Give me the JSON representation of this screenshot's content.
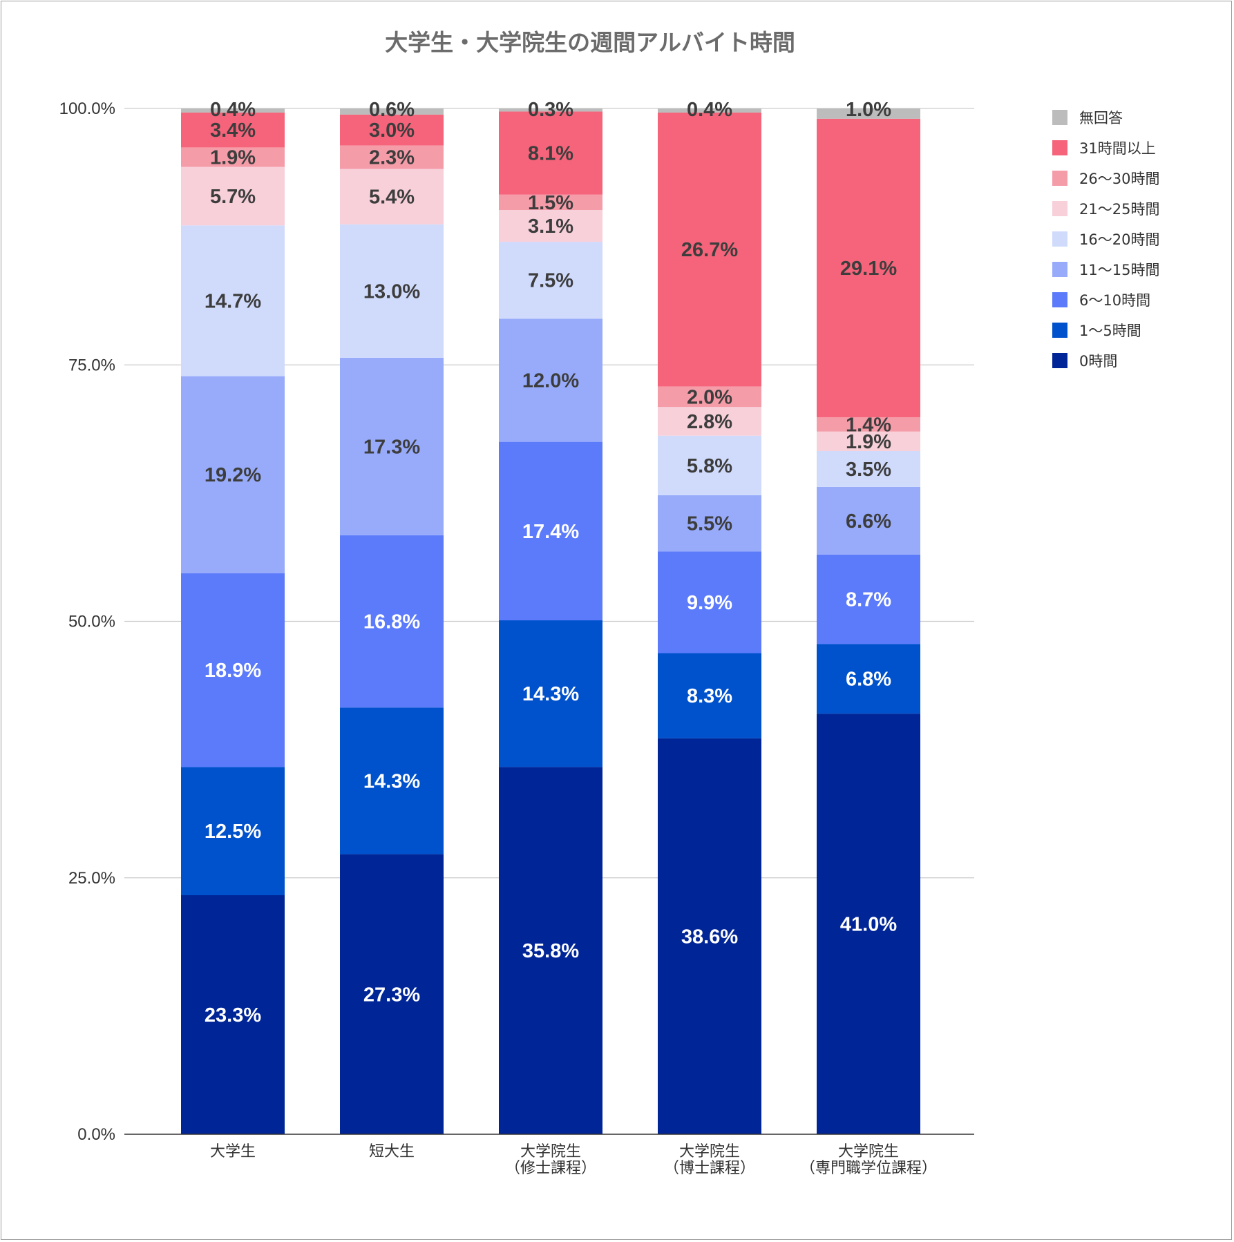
{
  "chart_data": {
    "type": "bar",
    "stacked": true,
    "title": "大学生・大学院生の週間アルバイト時間",
    "categories": [
      [
        "大学生"
      ],
      [
        "短大生"
      ],
      [
        "大学院生",
        "（修士課程）"
      ],
      [
        "大学院生",
        "（博士課程）"
      ],
      [
        "大学院生",
        "（専門職学位課程）"
      ]
    ],
    "ylim": [
      0,
      100
    ],
    "yticks": [
      "0.0%",
      "25.0%",
      "50.0%",
      "75.0%",
      "100.0%"
    ],
    "legend_position": "right",
    "series": [
      {
        "name": "0時間",
        "color": "#002596",
        "label_color": "#ffffff",
        "values": [
          23.3,
          27.3,
          35.8,
          38.6,
          41.0
        ],
        "labels": [
          "23.3%",
          "27.3%",
          "35.8%",
          "38.6%",
          "41.0%"
        ]
      },
      {
        "name": "1〜5時間",
        "color": "#0051cc",
        "label_color": "#ffffff",
        "values": [
          12.5,
          14.3,
          14.3,
          8.3,
          6.8
        ],
        "labels": [
          "12.5%",
          "14.3%",
          "14.3%",
          "8.3%",
          "6.8%"
        ]
      },
      {
        "name": "6〜10時間",
        "color": "#5c7bfb",
        "label_color": "#ffffff",
        "values": [
          18.9,
          16.8,
          17.4,
          9.9,
          8.7
        ],
        "labels": [
          "18.9%",
          "16.8%",
          "17.4%",
          "9.9%",
          "8.7%"
        ]
      },
      {
        "name": "11〜15時間",
        "color": "#97abfa",
        "label_color": "#3d3d3d",
        "values": [
          19.2,
          17.3,
          12.0,
          5.5,
          6.6
        ],
        "labels": [
          "19.2%",
          "17.3%",
          "12.0%",
          "5.5%",
          "6.6%"
        ]
      },
      {
        "name": "16〜20時間",
        "color": "#d0dbfc",
        "label_color": "#3d3d3d",
        "values": [
          14.7,
          13.0,
          7.5,
          5.8,
          3.5
        ],
        "labels": [
          "14.7%",
          "13.0%",
          "7.5%",
          "5.8%",
          "3.5%"
        ]
      },
      {
        "name": "21〜25時間",
        "color": "#f7d0da",
        "label_color": "#3d3d3d",
        "values": [
          5.7,
          5.4,
          3.1,
          2.8,
          1.9
        ],
        "labels": [
          "5.7%",
          "5.4%",
          "3.1%",
          "2.8%",
          "1.9%"
        ]
      },
      {
        "name": "26〜30時間",
        "color": "#f59ca9",
        "label_color": "#3d3d3d",
        "values": [
          1.9,
          2.3,
          1.5,
          2.0,
          1.4
        ],
        "labels": [
          "1.9%",
          "2.3%",
          "1.5%",
          "2.0%",
          "1.4%"
        ]
      },
      {
        "name": "31時間以上",
        "color": "#f5647a",
        "label_color": "#3d3d3d",
        "values": [
          3.4,
          3.0,
          8.1,
          26.7,
          29.1
        ],
        "labels": [
          "3.4%",
          "3.0%",
          "8.1%",
          "26.7%",
          "29.1%"
        ]
      },
      {
        "name": "無回答",
        "color": "#bcbcbc",
        "label_color": "#3d3d3d",
        "values": [
          0.4,
          0.6,
          0.3,
          0.4,
          1.0
        ],
        "labels": [
          "0.4%",
          "0.6%",
          "0.3%",
          "0.4%",
          "1.0%"
        ]
      }
    ],
    "legend_order": [
      "無回答",
      "31時間以上",
      "26〜30時間",
      "21〜25時間",
      "16〜20時間",
      "11〜15時間",
      "6〜10時間",
      "1〜5時間",
      "0時間"
    ],
    "gridlines": true,
    "gridline_color": "#cccccc"
  }
}
